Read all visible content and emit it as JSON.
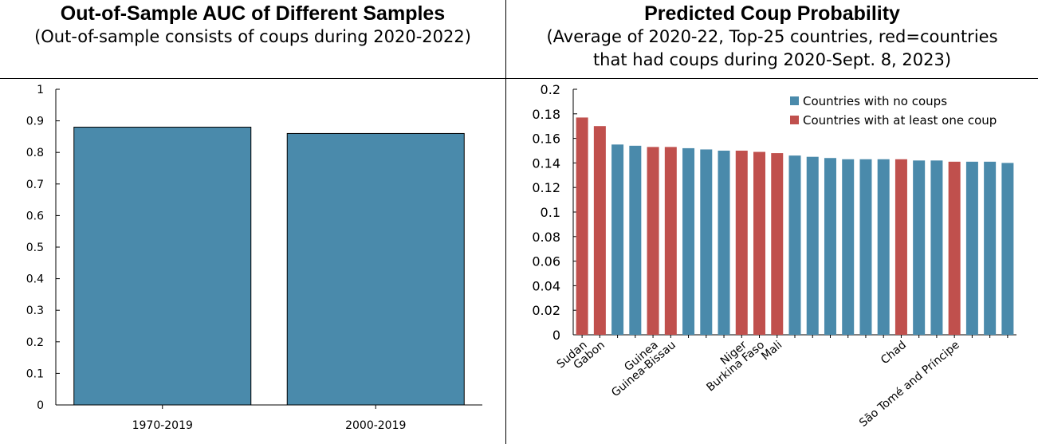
{
  "left_panel": {
    "title": "Out-of-Sample AUC of Different Samples",
    "subtitle": "(Out-of-sample consists of coups during 2020-2022)"
  },
  "right_panel": {
    "title": "Predicted Coup Probability",
    "subtitle_line1": "(Average of 2020-22, Top-25 countries, red=countries",
    "subtitle_line2": "that had coups during 2020-Sept. 8, 2023)"
  },
  "colors": {
    "no_coup": "#4a8aab",
    "coup": "#c0504d",
    "axis": "#000000"
  },
  "chart_data": [
    {
      "type": "bar",
      "categories": [
        "1970-2019",
        "2000-2019"
      ],
      "values": [
        0.88,
        0.86
      ],
      "ylim": [
        0,
        1
      ],
      "yticks": [
        "0",
        "0.1",
        "0.2",
        "0.3",
        "0.4",
        "0.5",
        "0.6",
        "0.7",
        "0.8",
        "0.9",
        "1"
      ],
      "grid": false
    },
    {
      "type": "bar",
      "ylim": [
        0,
        0.2
      ],
      "yticks": [
        "0",
        "0.02",
        "0.04",
        "0.06",
        "0.08",
        "0.1",
        "0.12",
        "0.14",
        "0.16",
        "0.18",
        "0.2"
      ],
      "grid": false,
      "legend_position": "top-right",
      "series": [
        {
          "name": "Countries with no coups",
          "color": "#4a8aab"
        },
        {
          "name": "Countries with at least one coup",
          "color": "#c0504d"
        }
      ],
      "bars": [
        {
          "label": "Sudan",
          "value": 0.177,
          "coup": true
        },
        {
          "label": "Gabon",
          "value": 0.17,
          "coup": true
        },
        {
          "label": "",
          "value": 0.155,
          "coup": false
        },
        {
          "label": "",
          "value": 0.154,
          "coup": false
        },
        {
          "label": "Guinea",
          "value": 0.153,
          "coup": true
        },
        {
          "label": "Guinea-Bissau",
          "value": 0.153,
          "coup": true
        },
        {
          "label": "",
          "value": 0.152,
          "coup": false
        },
        {
          "label": "",
          "value": 0.151,
          "coup": false
        },
        {
          "label": "",
          "value": 0.15,
          "coup": false
        },
        {
          "label": "Niger",
          "value": 0.15,
          "coup": true
        },
        {
          "label": "Burkina Faso",
          "value": 0.149,
          "coup": true
        },
        {
          "label": "Mali",
          "value": 0.148,
          "coup": true
        },
        {
          "label": "",
          "value": 0.146,
          "coup": false
        },
        {
          "label": "",
          "value": 0.145,
          "coup": false
        },
        {
          "label": "",
          "value": 0.144,
          "coup": false
        },
        {
          "label": "",
          "value": 0.143,
          "coup": false
        },
        {
          "label": "",
          "value": 0.143,
          "coup": false
        },
        {
          "label": "",
          "value": 0.143,
          "coup": false
        },
        {
          "label": "Chad",
          "value": 0.143,
          "coup": true
        },
        {
          "label": "",
          "value": 0.142,
          "coup": false
        },
        {
          "label": "",
          "value": 0.142,
          "coup": false
        },
        {
          "label": "São Tomé and Príncipe",
          "value": 0.141,
          "coup": true
        },
        {
          "label": "",
          "value": 0.141,
          "coup": false
        },
        {
          "label": "",
          "value": 0.141,
          "coup": false
        },
        {
          "label": "",
          "value": 0.14,
          "coup": false
        }
      ]
    }
  ]
}
